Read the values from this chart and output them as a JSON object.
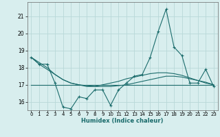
{
  "xlabel": "Humidex (Indice chaleur)",
  "x": [
    0,
    1,
    2,
    3,
    4,
    5,
    6,
    7,
    8,
    9,
    10,
    11,
    12,
    13,
    14,
    15,
    16,
    17,
    18,
    19,
    20,
    21,
    22,
    23
  ],
  "y_main": [
    18.6,
    18.2,
    18.2,
    17.1,
    15.7,
    15.6,
    16.3,
    16.2,
    16.7,
    16.7,
    15.8,
    16.7,
    17.1,
    17.5,
    17.6,
    18.6,
    20.1,
    21.4,
    19.2,
    18.7,
    17.1,
    17.1,
    17.9,
    16.9
  ],
  "y_smooth1": [
    18.6,
    18.3,
    18.0,
    17.6,
    17.3,
    17.1,
    17.0,
    16.95,
    16.9,
    16.9,
    16.9,
    16.95,
    17.0,
    17.1,
    17.2,
    17.3,
    17.4,
    17.5,
    17.5,
    17.45,
    17.35,
    17.25,
    17.15,
    17.0
  ],
  "y_smooth2": [
    18.6,
    18.2,
    17.9,
    17.6,
    17.3,
    17.1,
    17.0,
    16.9,
    16.9,
    17.0,
    17.1,
    17.2,
    17.35,
    17.45,
    17.55,
    17.65,
    17.7,
    17.7,
    17.65,
    17.55,
    17.4,
    17.25,
    17.1,
    17.0
  ],
  "y_flat": [
    17.0,
    17.0,
    17.0,
    17.0,
    17.0,
    17.0,
    17.0,
    17.0,
    17.0,
    17.0,
    17.0,
    17.0,
    17.0,
    17.0,
    17.0,
    17.0,
    17.0,
    17.0,
    17.0,
    17.0,
    17.0,
    17.0,
    17.0,
    17.0
  ],
  "line_color": "#1a6b6b",
  "bg_color": "#d8eeee",
  "grid_color": "#b8d8d8",
  "ylim": [
    15.5,
    21.8
  ],
  "yticks": [
    16,
    17,
    18,
    19,
    20,
    21
  ],
  "xtick_labels": [
    "0",
    "1",
    "2",
    "3",
    "4",
    "5",
    "6",
    "7",
    "8",
    "9",
    "10",
    "11",
    "12",
    "13",
    "14",
    "15",
    "16",
    "17",
    "18",
    "19",
    "20",
    "21",
    "22",
    "23"
  ]
}
